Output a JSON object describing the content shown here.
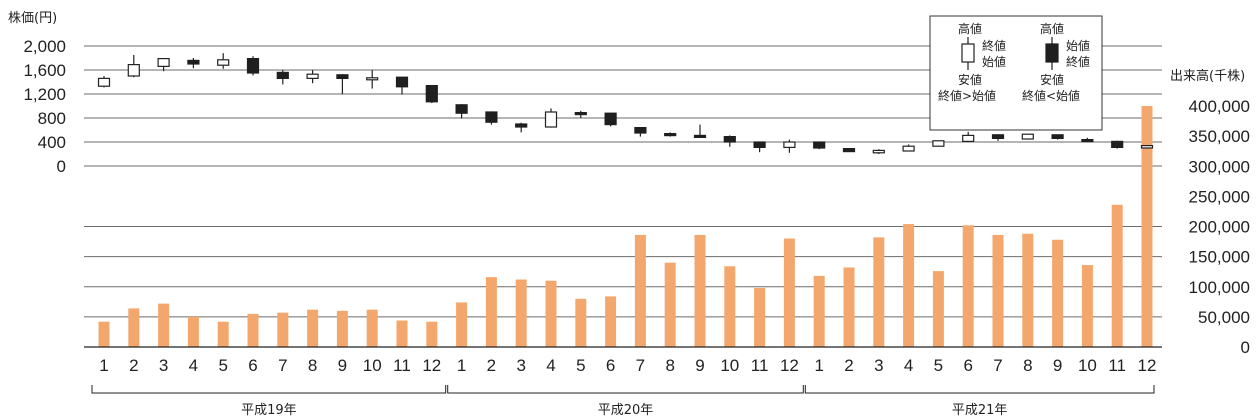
{
  "chart_data": {
    "type": "candlestick+bar",
    "left_axis_title": "株価(円)",
    "right_axis_title": "出来高(千株)",
    "price_ticks": [
      "2,000",
      "1,600",
      "1,200",
      "800",
      "400",
      "0"
    ],
    "volume_ticks": [
      "400,000",
      "350,000",
      "300,000",
      "250,000",
      "200,000",
      "150,000",
      "100,000",
      "50,000",
      "0"
    ],
    "price_ylim": [
      0,
      2000
    ],
    "volume_ylim": [
      0,
      400000
    ],
    "months": [
      "1",
      "2",
      "3",
      "4",
      "5",
      "6",
      "7",
      "8",
      "9",
      "10",
      "11",
      "12",
      "1",
      "2",
      "3",
      "4",
      "5",
      "6",
      "7",
      "8",
      "9",
      "10",
      "11",
      "12",
      "1",
      "2",
      "3",
      "4",
      "5",
      "6",
      "7",
      "8",
      "9",
      "10",
      "11",
      "12"
    ],
    "years": [
      "平成19年",
      "平成20年",
      "平成21年"
    ],
    "candles": [
      {
        "open": 1330,
        "high": 1500,
        "low": 1310,
        "close": 1460
      },
      {
        "open": 1500,
        "high": 1850,
        "low": 1480,
        "close": 1690
      },
      {
        "open": 1660,
        "high": 1790,
        "low": 1580,
        "close": 1790
      },
      {
        "open": 1760,
        "high": 1800,
        "low": 1630,
        "close": 1700
      },
      {
        "open": 1680,
        "high": 1880,
        "low": 1620,
        "close": 1770
      },
      {
        "open": 1790,
        "high": 1830,
        "low": 1510,
        "close": 1550
      },
      {
        "open": 1560,
        "high": 1600,
        "low": 1360,
        "close": 1460
      },
      {
        "open": 1460,
        "high": 1600,
        "low": 1380,
        "close": 1530
      },
      {
        "open": 1520,
        "high": 1530,
        "low": 1200,
        "close": 1460
      },
      {
        "open": 1460,
        "high": 1600,
        "low": 1290,
        "close": 1470
      },
      {
        "open": 1480,
        "high": 1480,
        "low": 1190,
        "close": 1320
      },
      {
        "open": 1340,
        "high": 1340,
        "low": 1050,
        "close": 1070
      },
      {
        "open": 1020,
        "high": 1030,
        "low": 790,
        "close": 880
      },
      {
        "open": 900,
        "high": 910,
        "low": 690,
        "close": 730
      },
      {
        "open": 700,
        "high": 720,
        "low": 560,
        "close": 650
      },
      {
        "open": 650,
        "high": 960,
        "low": 640,
        "close": 900
      },
      {
        "open": 890,
        "high": 920,
        "low": 800,
        "close": 880
      },
      {
        "open": 880,
        "high": 890,
        "low": 660,
        "close": 690
      },
      {
        "open": 640,
        "high": 640,
        "low": 490,
        "close": 550
      },
      {
        "open": 540,
        "high": 560,
        "low": 490,
        "close": 530
      },
      {
        "open": 510,
        "high": 690,
        "low": 480,
        "close": 490
      },
      {
        "open": 490,
        "high": 510,
        "low": 320,
        "close": 400
      },
      {
        "open": 400,
        "high": 400,
        "low": 230,
        "close": 310
      },
      {
        "open": 310,
        "high": 440,
        "low": 220,
        "close": 400
      },
      {
        "open": 400,
        "high": 410,
        "low": 280,
        "close": 300
      },
      {
        "open": 290,
        "high": 300,
        "low": 240,
        "close": 240
      },
      {
        "open": 220,
        "high": 280,
        "low": 200,
        "close": 260
      },
      {
        "open": 250,
        "high": 360,
        "low": 250,
        "close": 330
      },
      {
        "open": 330,
        "high": 420,
        "low": 330,
        "close": 420
      },
      {
        "open": 410,
        "high": 570,
        "low": 410,
        "close": 510
      },
      {
        "open": 520,
        "high": 530,
        "low": 420,
        "close": 460
      },
      {
        "open": 450,
        "high": 530,
        "low": 440,
        "close": 530
      },
      {
        "open": 520,
        "high": 520,
        "low": 440,
        "close": 460
      },
      {
        "open": 440,
        "high": 470,
        "low": 410,
        "close": 420
      },
      {
        "open": 410,
        "high": 420,
        "low": 290,
        "close": 310
      },
      {
        "open": 300,
        "high": 350,
        "low": 290,
        "close": 340
      }
    ],
    "volume": [
      42000,
      64000,
      72000,
      50000,
      42000,
      55000,
      57000,
      62000,
      60000,
      62000,
      44000,
      42000,
      74000,
      116000,
      112000,
      110000,
      80000,
      84000,
      186000,
      140000,
      186000,
      134000,
      98000,
      180000,
      118000,
      132000,
      182000,
      204000,
      126000,
      202000,
      186000,
      188000,
      178000,
      136000,
      236000,
      400000
    ],
    "legend": {
      "high": "高値",
      "low": "安値",
      "close": "終値",
      "open": "始値",
      "up_caption": "終値>始値",
      "down_caption": "終値<始値"
    },
    "colors": {
      "bar": "#f4a76d",
      "candle_down": "#1f1f1f",
      "candle_up": "#ffffff",
      "grid": "#6b6b6b",
      "text": "#222222"
    }
  }
}
